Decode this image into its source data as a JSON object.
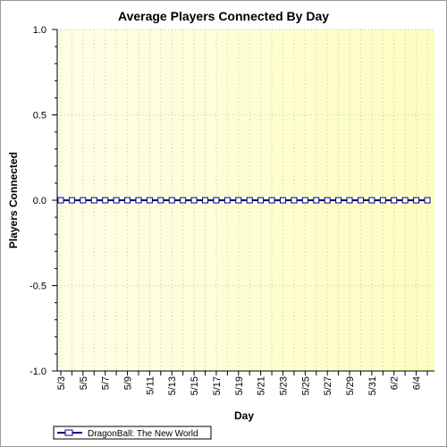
{
  "chart_data": {
    "type": "line",
    "title": "Average Players Connected By Day",
    "xlabel": "Day",
    "ylabel": "Players Connected",
    "ylim": [
      -1.0,
      1.0
    ],
    "y_ticks": [
      "1.0",
      "0.5",
      "0.0",
      "-0.5",
      "-1.0"
    ],
    "y_tick_values": [
      1.0,
      0.5,
      0.0,
      -0.5,
      -1.0
    ],
    "x_tick_labels": [
      "5/3",
      "5/5",
      "5/7",
      "5/9",
      "5/11",
      "5/13",
      "5/15",
      "5/17",
      "5/19",
      "5/21",
      "5/23",
      "5/25",
      "5/27",
      "5/29",
      "5/31",
      "6/2",
      "6/4"
    ],
    "x": [
      "5/3",
      "5/4",
      "5/5",
      "5/6",
      "5/7",
      "5/8",
      "5/9",
      "5/10",
      "5/11",
      "5/12",
      "5/13",
      "5/14",
      "5/15",
      "5/16",
      "5/17",
      "5/18",
      "5/19",
      "5/20",
      "5/21",
      "5/22",
      "5/23",
      "5/24",
      "5/25",
      "5/26",
      "5/27",
      "5/28",
      "5/29",
      "5/30",
      "5/31",
      "6/1",
      "6/2",
      "6/3",
      "6/4",
      "6/5"
    ],
    "series": [
      {
        "name": "DragonBall: The New World",
        "color": "#000080",
        "values": [
          0,
          0,
          0,
          0,
          0,
          0,
          0,
          0,
          0,
          0,
          0,
          0,
          0,
          0,
          0,
          0,
          0,
          0,
          0,
          0,
          0,
          0,
          0,
          0,
          0,
          0,
          0,
          0,
          0,
          0,
          0,
          0,
          0,
          0
        ]
      }
    ],
    "grid": true,
    "legend_position": "bottom-left",
    "background_gradient": [
      "#fefee8",
      "#fdfdc0"
    ]
  }
}
